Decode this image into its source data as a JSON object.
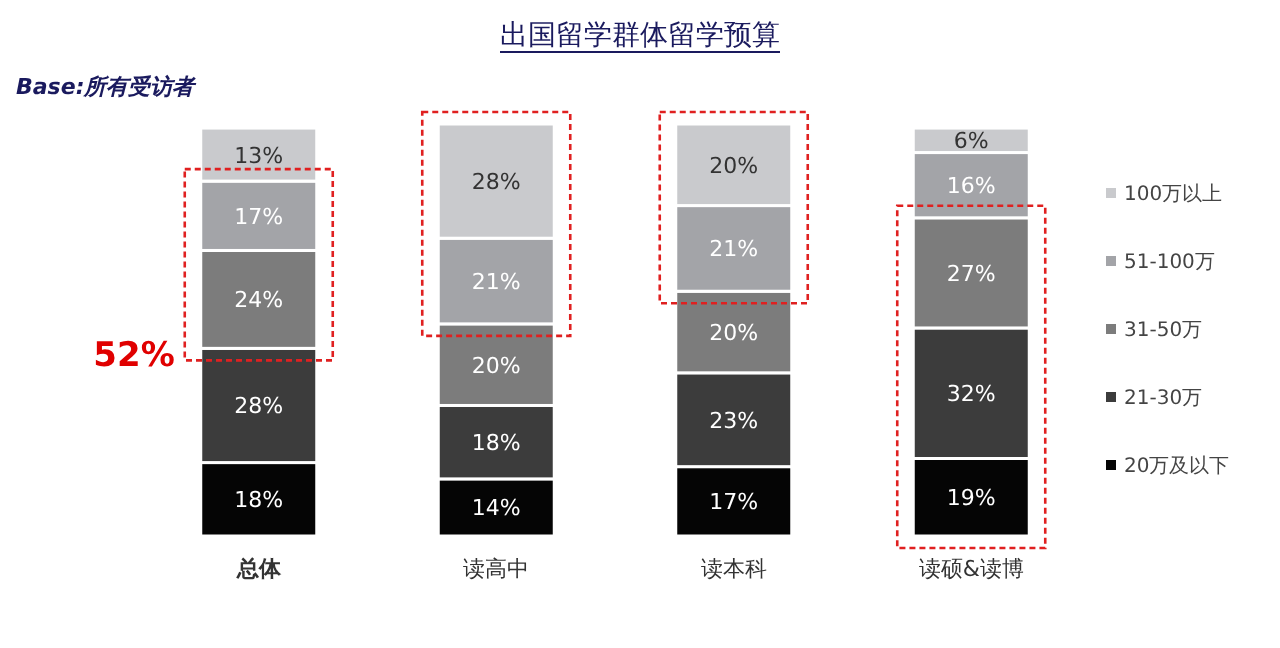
{
  "chart_data": {
    "type": "bar",
    "stacked": true,
    "title": "出国留学群体留学预算",
    "annotations": [
      "Base:所有受访者",
      "52%"
    ],
    "categories": [
      "总体",
      "读高中",
      "读本科",
      "读硕&读博"
    ],
    "series": [
      {
        "name": "20万及以下",
        "color": "#050505",
        "values": [
          18,
          14,
          17,
          19
        ],
        "value_labels": [
          "18%",
          "14%",
          "17%",
          "19%"
        ]
      },
      {
        "name": "21-30万",
        "color": "#3c3c3c",
        "values": [
          28,
          18,
          23,
          32
        ],
        "value_labels": [
          "28%",
          "18%",
          "23%",
          "32%"
        ]
      },
      {
        "name": "31-50万",
        "color": "#7c7c7c",
        "values": [
          24,
          20,
          20,
          27
        ],
        "value_labels": [
          "24%",
          "20%",
          "20%",
          "27%"
        ]
      },
      {
        "name": "51-100万",
        "color": "#a3a4a8",
        "values": [
          17,
          21,
          21,
          16
        ],
        "value_labels": [
          "17%",
          "21%",
          "21%",
          "16%"
        ]
      },
      {
        "name": "100万以上",
        "color": "#c9cacd",
        "values": [
          13,
          28,
          20,
          6
        ],
        "value_labels": [
          "13%",
          "28%",
          "20%",
          "6%"
        ]
      }
    ],
    "legend": "right"
  }
}
